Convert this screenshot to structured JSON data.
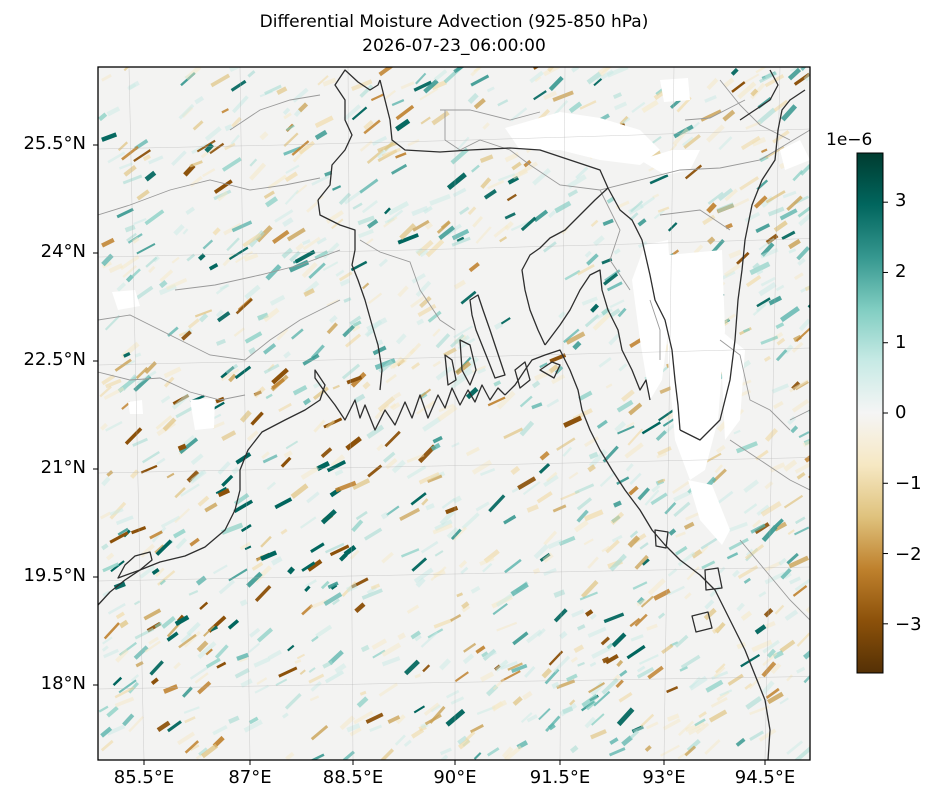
{
  "title": {
    "line1": "Differential Moisture Advection (925-850 hPa)",
    "line2": "2026-07-23_06:00:00"
  },
  "map": {
    "lat_ticks": [
      "25.5°N",
      "24°N",
      "22.5°N",
      "21°N",
      "19.5°N",
      "18°N"
    ],
    "lon_ticks": [
      "85.5°E",
      "87°E",
      "88.5°E",
      "90°E",
      "91.5°E",
      "93°E",
      "94.5°E"
    ],
    "lat_range": [
      17.0,
      26.7
    ],
    "lon_range": [
      84.9,
      94.9
    ],
    "frame_color": "#000000",
    "coastline_color": "#333333",
    "border_color": "#999999",
    "background_field": "#f2f2f2"
  },
  "colorbar": {
    "exponent_label": "1e−6",
    "tick_labels": [
      "3",
      "2",
      "1",
      "0",
      "−1",
      "−2",
      "−3"
    ],
    "tick_values": [
      3,
      2,
      1,
      0,
      -1,
      -2,
      -3
    ],
    "range": [
      -3.7,
      3.7
    ],
    "colormap": "BrBG",
    "colors": [
      "#543005",
      "#8c510a",
      "#bf812d",
      "#dfc27d",
      "#f6e8c3",
      "#f5f5f5",
      "#c7eae5",
      "#80cdc1",
      "#35978f",
      "#01665e",
      "#003c30"
    ]
  }
}
